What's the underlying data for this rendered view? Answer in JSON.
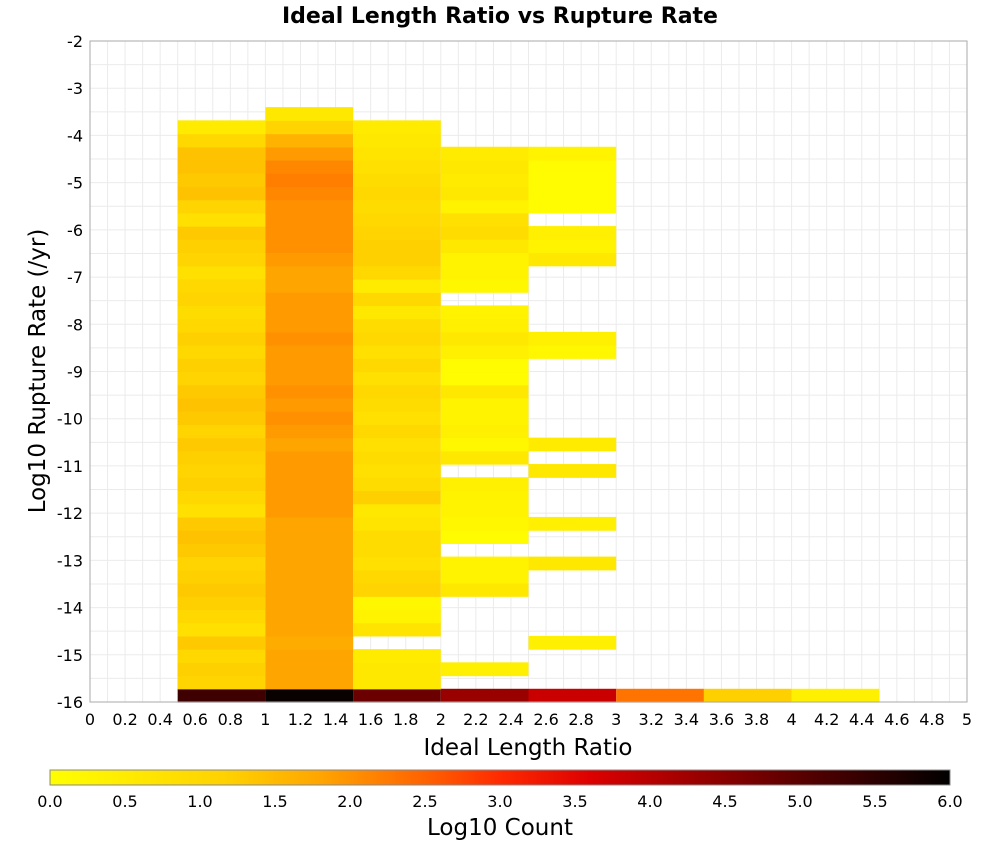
{
  "chart_data": {
    "type": "heatmap",
    "title": "Ideal Length Ratio vs Rupture Rate",
    "xlabel": "Ideal Length Ratio",
    "ylabel": "Log10 Rupture Rate (/yr)",
    "xlim": [
      0,
      5
    ],
    "ylim": [
      -16,
      -2
    ],
    "x_ticks": [
      "0",
      "0.2",
      "0.4",
      "0.6",
      "0.8",
      "1",
      "1.2",
      "1.4",
      "1.6",
      "1.8",
      "2",
      "2.2",
      "2.4",
      "2.6",
      "2.8",
      "3",
      "3.2",
      "3.4",
      "3.6",
      "3.8",
      "4",
      "4.2",
      "4.4",
      "4.6",
      "4.8",
      "5"
    ],
    "y_ticks": [
      "-2",
      "-3",
      "-4",
      "-5",
      "-6",
      "-7",
      "-8",
      "-9",
      "-10",
      "-11",
      "-12",
      "-13",
      "-14",
      "-15",
      "-16"
    ],
    "grid": true,
    "bin_width_x": 0.5,
    "bin_height_y": 0.28,
    "colorbar": {
      "label": "Log10 Count",
      "range": [
        0,
        6
      ],
      "ticks": [
        "0.0",
        "0.5",
        "1.0",
        "1.5",
        "2.0",
        "2.5",
        "3.0",
        "3.5",
        "4.0",
        "4.5",
        "5.0",
        "5.5",
        "6.0"
      ],
      "colormap": [
        "#ffff00",
        "#ffa500",
        "#ff4500",
        "#ee0000",
        "#8b0000",
        "#000000"
      ]
    },
    "columns": [
      {
        "x": 0.5,
        "cells": [
          {
            "y": -16.0,
            "v": 5.3
          },
          {
            "y": -15.72,
            "v": 1.1
          },
          {
            "y": -15.44,
            "v": 1.2
          },
          {
            "y": -15.16,
            "v": 1.0
          },
          {
            "y": -14.88,
            "v": 1.3
          },
          {
            "y": -14.6,
            "v": 0.8
          },
          {
            "y": -14.32,
            "v": 1.0
          },
          {
            "y": -14.04,
            "v": 1.2
          },
          {
            "y": -13.76,
            "v": 1.3
          },
          {
            "y": -13.48,
            "v": 1.2
          },
          {
            "y": -13.2,
            "v": 1.1
          },
          {
            "y": -12.92,
            "v": 1.3
          },
          {
            "y": -12.64,
            "v": 1.4
          },
          {
            "y": -12.36,
            "v": 1.3
          },
          {
            "y": -12.08,
            "v": 0.8
          },
          {
            "y": -11.8,
            "v": 1.0
          },
          {
            "y": -11.52,
            "v": 1.2
          },
          {
            "y": -11.24,
            "v": 1.1
          },
          {
            "y": -10.96,
            "v": 1.2
          },
          {
            "y": -10.68,
            "v": 1.3
          },
          {
            "y": -10.4,
            "v": 1.1
          },
          {
            "y": -10.12,
            "v": 1.3
          },
          {
            "y": -9.84,
            "v": 1.4
          },
          {
            "y": -9.56,
            "v": 1.3
          },
          {
            "y": -9.28,
            "v": 1.1
          },
          {
            "y": -9.0,
            "v": 1.2
          },
          {
            "y": -8.72,
            "v": 1.0
          },
          {
            "y": -8.44,
            "v": 1.2
          },
          {
            "y": -8.16,
            "v": 1.0
          },
          {
            "y": -7.88,
            "v": 0.9
          },
          {
            "y": -7.6,
            "v": 1.1
          },
          {
            "y": -7.32,
            "v": 1.0
          },
          {
            "y": -7.04,
            "v": 0.8
          },
          {
            "y": -6.76,
            "v": 1.1
          },
          {
            "y": -6.48,
            "v": 1.2
          },
          {
            "y": -6.2,
            "v": 1.3
          },
          {
            "y": -5.92,
            "v": 0.8
          },
          {
            "y": -5.64,
            "v": 1.1
          },
          {
            "y": -5.36,
            "v": 1.4
          },
          {
            "y": -5.08,
            "v": 1.3
          },
          {
            "y": -4.8,
            "v": 1.4
          },
          {
            "y": -4.52,
            "v": 1.4
          },
          {
            "y": -4.24,
            "v": 1.0
          },
          {
            "y": -3.96,
            "v": 0.5
          }
        ]
      },
      {
        "x": 1.0,
        "cells": [
          {
            "y": -16.0,
            "v": 5.9
          },
          {
            "y": -15.72,
            "v": 1.8
          },
          {
            "y": -15.44,
            "v": 1.8
          },
          {
            "y": -15.16,
            "v": 1.8
          },
          {
            "y": -14.88,
            "v": 1.7
          },
          {
            "y": -14.6,
            "v": 1.8
          },
          {
            "y": -14.32,
            "v": 1.8
          },
          {
            "y": -14.04,
            "v": 1.8
          },
          {
            "y": -13.76,
            "v": 1.8
          },
          {
            "y": -13.48,
            "v": 1.8
          },
          {
            "y": -13.2,
            "v": 1.8
          },
          {
            "y": -12.92,
            "v": 1.8
          },
          {
            "y": -12.64,
            "v": 1.8
          },
          {
            "y": -12.36,
            "v": 1.8
          },
          {
            "y": -12.08,
            "v": 1.9
          },
          {
            "y": -11.8,
            "v": 1.9
          },
          {
            "y": -11.52,
            "v": 1.9
          },
          {
            "y": -11.24,
            "v": 1.9
          },
          {
            "y": -10.96,
            "v": 1.9
          },
          {
            "y": -10.68,
            "v": 1.8
          },
          {
            "y": -10.4,
            "v": 1.9
          },
          {
            "y": -10.12,
            "v": 2.0
          },
          {
            "y": -9.84,
            "v": 1.9
          },
          {
            "y": -9.56,
            "v": 2.0
          },
          {
            "y": -9.28,
            "v": 1.9
          },
          {
            "y": -9.0,
            "v": 1.9
          },
          {
            "y": -8.72,
            "v": 1.9
          },
          {
            "y": -8.44,
            "v": 2.0
          },
          {
            "y": -8.16,
            "v": 1.9
          },
          {
            "y": -7.88,
            "v": 1.9
          },
          {
            "y": -7.6,
            "v": 1.9
          },
          {
            "y": -7.32,
            "v": 1.8
          },
          {
            "y": -7.04,
            "v": 1.8
          },
          {
            "y": -6.76,
            "v": 1.9
          },
          {
            "y": -6.48,
            "v": 2.0
          },
          {
            "y": -6.2,
            "v": 2.0
          },
          {
            "y": -5.92,
            "v": 2.0
          },
          {
            "y": -5.64,
            "v": 2.0
          },
          {
            "y": -5.36,
            "v": 2.1
          },
          {
            "y": -5.08,
            "v": 2.2
          },
          {
            "y": -4.8,
            "v": 2.1
          },
          {
            "y": -4.52,
            "v": 1.9
          },
          {
            "y": -4.24,
            "v": 1.6
          },
          {
            "y": -3.96,
            "v": 1.1
          },
          {
            "y": -3.68,
            "v": 0.6
          }
        ]
      },
      {
        "x": 1.5,
        "cells": [
          {
            "y": -16.0,
            "v": 4.8
          },
          {
            "y": -15.72,
            "v": 0.6
          },
          {
            "y": -15.44,
            "v": 0.6
          },
          {
            "y": -15.16,
            "v": 0.5
          },
          {
            "y": -14.6,
            "v": 0.7
          },
          {
            "y": -14.32,
            "v": 0.3
          },
          {
            "y": -14.04,
            "v": 0.2
          },
          {
            "y": -13.76,
            "v": 1.1
          },
          {
            "y": -13.48,
            "v": 1.0
          },
          {
            "y": -13.2,
            "v": 0.8
          },
          {
            "y": -12.92,
            "v": 0.9
          },
          {
            "y": -12.64,
            "v": 0.9
          },
          {
            "y": -12.36,
            "v": 0.7
          },
          {
            "y": -12.08,
            "v": 0.6
          },
          {
            "y": -11.8,
            "v": 1.2
          },
          {
            "y": -11.52,
            "v": 0.9
          },
          {
            "y": -11.24,
            "v": 0.8
          },
          {
            "y": -10.96,
            "v": 0.9
          },
          {
            "y": -10.68,
            "v": 0.8
          },
          {
            "y": -10.4,
            "v": 1.0
          },
          {
            "y": -10.12,
            "v": 0.8
          },
          {
            "y": -9.84,
            "v": 0.9
          },
          {
            "y": -9.56,
            "v": 1.0
          },
          {
            "y": -9.28,
            "v": 0.8
          },
          {
            "y": -9.0,
            "v": 1.0
          },
          {
            "y": -8.72,
            "v": 0.8
          },
          {
            "y": -8.44,
            "v": 1.0
          },
          {
            "y": -8.16,
            "v": 0.9
          },
          {
            "y": -7.88,
            "v": 0.6
          },
          {
            "y": -7.6,
            "v": 1.0
          },
          {
            "y": -7.32,
            "v": 0.5
          },
          {
            "y": -7.04,
            "v": 1.0
          },
          {
            "y": -6.76,
            "v": 1.2
          },
          {
            "y": -6.48,
            "v": 1.2
          },
          {
            "y": -6.2,
            "v": 1.1
          },
          {
            "y": -5.92,
            "v": 1.0
          },
          {
            "y": -5.64,
            "v": 0.9
          },
          {
            "y": -5.36,
            "v": 1.0
          },
          {
            "y": -5.08,
            "v": 0.9
          },
          {
            "y": -4.8,
            "v": 0.8
          },
          {
            "y": -4.52,
            "v": 0.7
          },
          {
            "y": -4.24,
            "v": 0.6
          },
          {
            "y": -3.96,
            "v": 0.5
          }
        ]
      },
      {
        "x": 2.0,
        "cells": [
          {
            "y": -16.0,
            "v": 4.3
          },
          {
            "y": -15.44,
            "v": 0.4
          },
          {
            "y": -13.76,
            "v": 0.6
          },
          {
            "y": -13.48,
            "v": 0.3
          },
          {
            "y": -13.2,
            "v": 0.3
          },
          {
            "y": -12.64,
            "v": 0.1
          },
          {
            "y": -12.36,
            "v": 0.2
          },
          {
            "y": -12.08,
            "v": 0.3
          },
          {
            "y": -11.8,
            "v": 0.3
          },
          {
            "y": -11.52,
            "v": 0.4
          },
          {
            "y": -10.96,
            "v": 0.6
          },
          {
            "y": -10.68,
            "v": 0.2
          },
          {
            "y": -10.4,
            "v": 0.4
          },
          {
            "y": -10.12,
            "v": 0.3
          },
          {
            "y": -9.84,
            "v": 0.3
          },
          {
            "y": -9.56,
            "v": 0.6
          },
          {
            "y": -9.28,
            "v": 0.1
          },
          {
            "y": -9.0,
            "v": 0.1
          },
          {
            "y": -8.72,
            "v": 0.4
          },
          {
            "y": -8.44,
            "v": 0.6
          },
          {
            "y": -8.16,
            "v": 0.4
          },
          {
            "y": -7.88,
            "v": 0.3
          },
          {
            "y": -7.32,
            "v": 0.2
          },
          {
            "y": -7.04,
            "v": 0.3
          },
          {
            "y": -6.76,
            "v": 0.3
          },
          {
            "y": -6.48,
            "v": 0.6
          },
          {
            "y": -6.2,
            "v": 0.9
          },
          {
            "y": -5.92,
            "v": 0.8
          },
          {
            "y": -5.64,
            "v": 0.3
          },
          {
            "y": -5.36,
            "v": 0.6
          },
          {
            "y": -5.08,
            "v": 0.5
          },
          {
            "y": -4.8,
            "v": 0.6
          },
          {
            "y": -4.52,
            "v": 0.5
          }
        ]
      },
      {
        "x": 2.5,
        "cells": [
          {
            "y": -16.0,
            "v": 3.8
          },
          {
            "y": -14.88,
            "v": 0.4
          },
          {
            "y": -13.2,
            "v": 0.6
          },
          {
            "y": -12.36,
            "v": 0.4
          },
          {
            "y": -11.24,
            "v": 0.6
          },
          {
            "y": -10.68,
            "v": 0.5
          },
          {
            "y": -8.72,
            "v": 0.2
          },
          {
            "y": -8.44,
            "v": 0.4
          },
          {
            "y": -6.76,
            "v": 0.6
          },
          {
            "y": -6.48,
            "v": 0.3
          },
          {
            "y": -6.2,
            "v": 0.4
          },
          {
            "y": -5.64,
            "v": 0.1
          },
          {
            "y": -5.36,
            "v": 0.1
          },
          {
            "y": -5.08,
            "v": 0.1
          },
          {
            "y": -4.8,
            "v": 0.1
          },
          {
            "y": -4.52,
            "v": 0.3
          }
        ]
      },
      {
        "x": 3.0,
        "cells": [
          {
            "y": -16.0,
            "v": 2.3
          }
        ]
      },
      {
        "x": 3.5,
        "cells": [
          {
            "y": -16.0,
            "v": 1.2
          }
        ]
      },
      {
        "x": 4.0,
        "cells": [
          {
            "y": -16.0,
            "v": 0.4
          }
        ]
      }
    ]
  }
}
